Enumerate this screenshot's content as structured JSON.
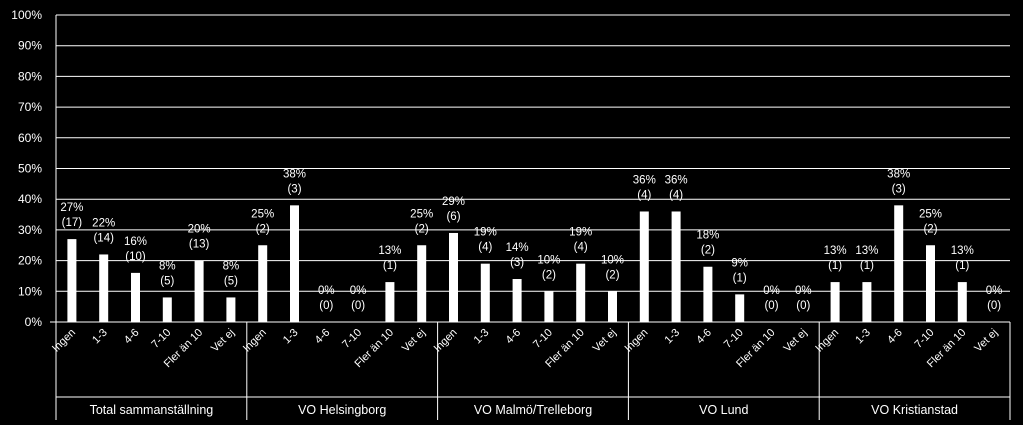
{
  "chart_data": {
    "type": "bar",
    "title": "",
    "xlabel": "",
    "ylabel": "",
    "ylim": [
      0,
      100
    ],
    "yticks": [
      "0%",
      "10%",
      "20%",
      "30%",
      "40%",
      "50%",
      "60%",
      "70%",
      "80%",
      "90%",
      "100%"
    ],
    "grid": true,
    "colors": {
      "background": "#000000",
      "bar": "#ffffff",
      "grid": "#ffffff"
    },
    "categories": [
      "Ingen",
      "1-3",
      "4-6",
      "7-10",
      "Fler än 10",
      "Vet ej"
    ],
    "groups": [
      {
        "name": "Total sammanställning",
        "values": [
          27,
          22,
          16,
          8,
          20,
          8
        ],
        "value_labels": [
          "27%",
          "22%",
          "16%",
          "8%",
          "20%",
          "8%"
        ],
        "count_labels": [
          "(17)",
          "(14)",
          "(10)",
          "(5)",
          "(13)",
          "(5)"
        ]
      },
      {
        "name": "VO Helsingborg",
        "values": [
          25,
          38,
          0,
          0,
          13,
          25
        ],
        "value_labels": [
          "25%",
          "38%",
          "0%",
          "0%",
          "13%",
          "25%"
        ],
        "count_labels": [
          "(2)",
          "(3)",
          "(0)",
          "(0)",
          "(1)",
          "(2)"
        ]
      },
      {
        "name": "VO Malmö/Trelleborg",
        "values": [
          29,
          19,
          14,
          10,
          19,
          10
        ],
        "value_labels": [
          "29%",
          "19%",
          "14%",
          "10%",
          "19%",
          "10%"
        ],
        "count_labels": [
          "(6)",
          "(4)",
          "(3)",
          "(2)",
          "(4)",
          "(2)"
        ]
      },
      {
        "name": "VO Lund",
        "values": [
          36,
          36,
          18,
          9,
          0,
          0
        ],
        "value_labels": [
          "36%",
          "36%",
          "18%",
          "9%",
          "0%",
          "0%"
        ],
        "count_labels": [
          "(4)",
          "(4)",
          "(2)",
          "(1)",
          "(0)",
          "(0)"
        ]
      },
      {
        "name": "VO Kristianstad",
        "values": [
          13,
          13,
          38,
          25,
          13,
          0
        ],
        "value_labels": [
          "13%",
          "13%",
          "38%",
          "25%",
          "13%",
          "0%"
        ],
        "count_labels": [
          "(1)",
          "(1)",
          "(3)",
          "(2)",
          "(1)",
          "(0)"
        ]
      }
    ]
  }
}
